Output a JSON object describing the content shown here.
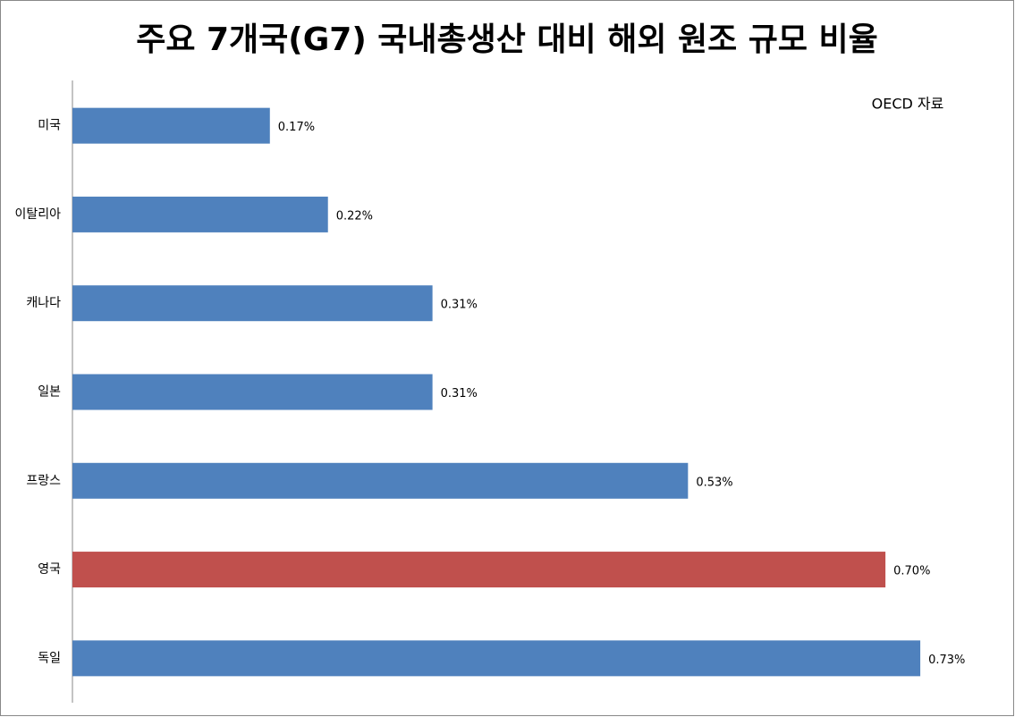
{
  "chart_data": {
    "type": "barh",
    "title": "주요 7개국(G7) 국내총생산 대비 해외 원조 규모 비율",
    "annotation": "OECD 자료",
    "categories": [
      "미국",
      "이탈리아",
      "캐나다",
      "일본",
      "프랑스",
      "영국",
      "독일"
    ],
    "values": [
      0.17,
      0.22,
      0.31,
      0.31,
      0.53,
      0.7,
      0.73
    ],
    "value_labels": [
      "0.17%",
      "0.22%",
      "0.31%",
      "0.31%",
      "0.53%",
      "0.70%",
      "0.73%"
    ],
    "colors": [
      "#4f81bd",
      "#4f81bd",
      "#4f81bd",
      "#4f81bd",
      "#4f81bd",
      "#c0504d",
      "#4f81bd"
    ],
    "xlim": [
      0,
      0.8
    ]
  }
}
